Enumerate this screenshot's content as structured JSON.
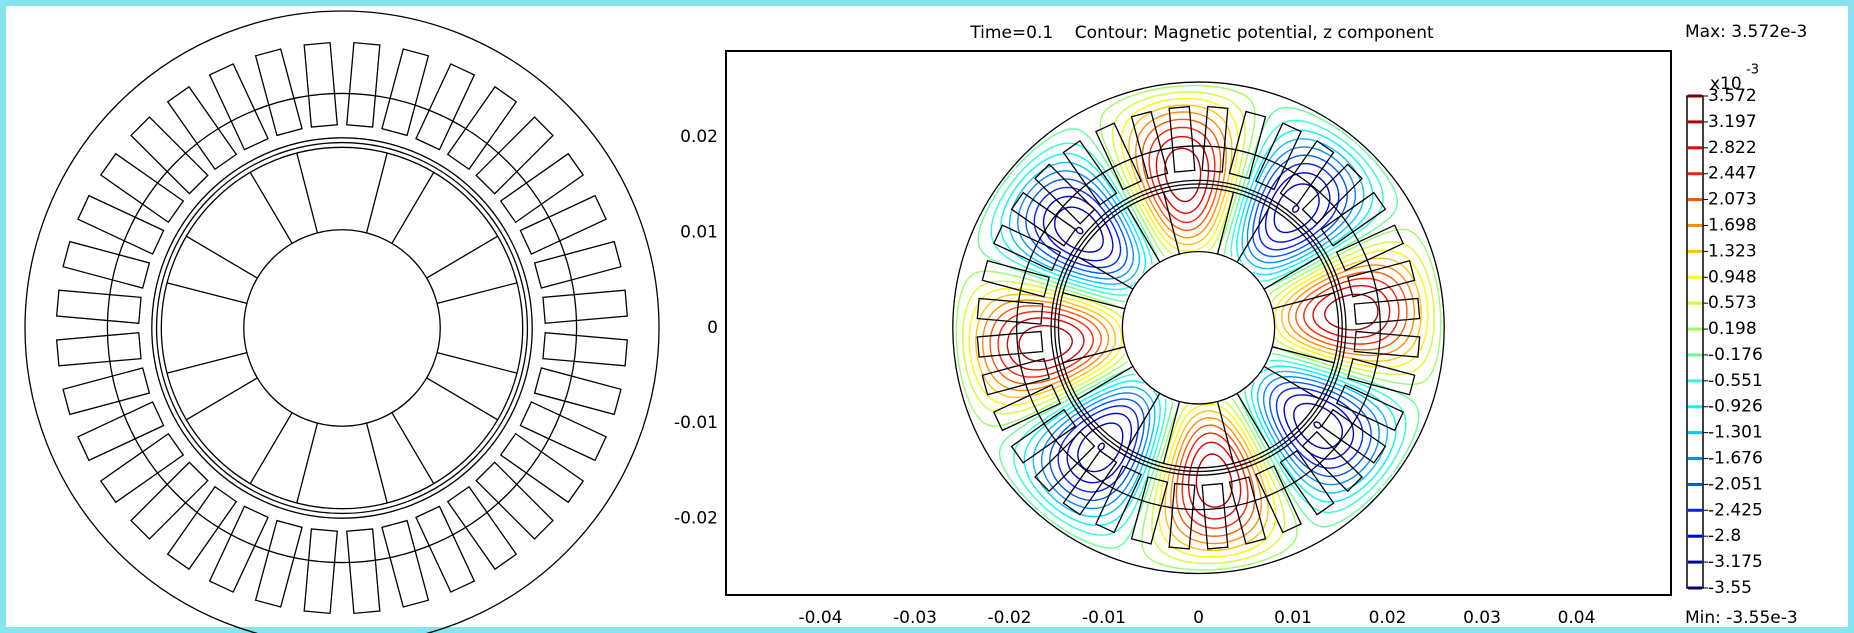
{
  "chart_data": {
    "type": "contour",
    "title": "Time=0.1    Contour: Magnetic potential, z component",
    "max_label": "Max: 3.572e-3",
    "min_label": "Min: -3.55e-3",
    "xlim": [
      -0.05,
      0.05
    ],
    "ylim": [
      -0.028,
      0.029
    ],
    "xticks": [
      -0.04,
      -0.03,
      -0.02,
      -0.01,
      0,
      0.01,
      0.02,
      0.03,
      0.04
    ],
    "yticks": [
      -0.02,
      -0.01,
      0,
      0.01,
      0.02
    ],
    "colorbar": {
      "label": "x10",
      "exponent": "-3",
      "colormap": "jet",
      "clim": [
        -3.55,
        3.572
      ],
      "ticks": [
        3.572,
        3.197,
        2.822,
        2.447,
        2.073,
        1.698,
        1.323,
        0.948,
        0.573,
        0.198,
        -0.176,
        -0.551,
        -0.926,
        -1.301,
        -1.676,
        -2.051,
        -2.425,
        -2.8,
        -3.175,
        -3.55
      ]
    }
  }
}
